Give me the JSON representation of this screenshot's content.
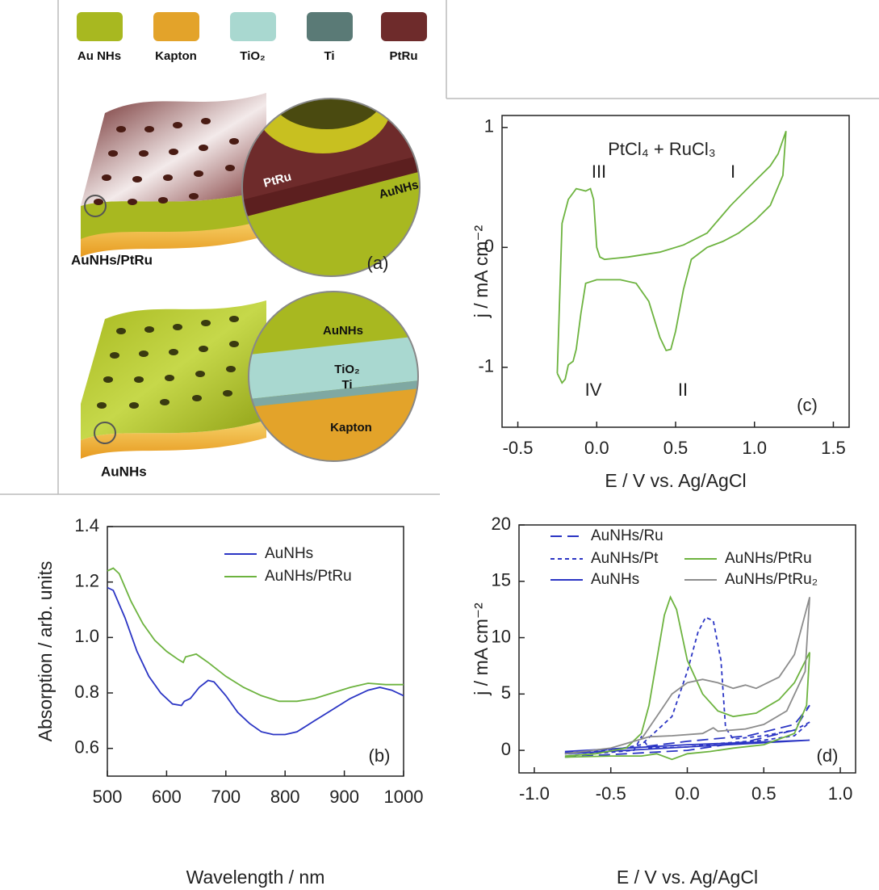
{
  "schematic": {
    "legend": [
      "Au NHs",
      "Kapton",
      "TiO₂",
      "Ti",
      "PtRu"
    ],
    "top": {
      "inset_labels": [
        "PtRu",
        "AuNHs"
      ],
      "caption": "AuNHs/PtRu",
      "panel_label": "(a)"
    },
    "bottom": {
      "inset_labels": [
        "AuNHs",
        "TiO₂",
        "Ti",
        "Kapton"
      ],
      "caption": "AuNHs"
    }
  },
  "chart_data": [
    {
      "type": "line",
      "panel_label": "(c)",
      "x_label": "E  / V vs. Ag/AgCl",
      "y_label": "j / mA cm⁻²",
      "xlim": [
        -0.6,
        1.6
      ],
      "ylim": [
        -1.5,
        1.1
      ],
      "xticks": [
        -0.5,
        {
          "value": 0,
          "label": "0.0"
        },
        0.5,
        {
          "value": 1,
          "label": "1.0"
        },
        1.5
      ],
      "yticks": [
        -1,
        0,
        1
      ],
      "annotations": [
        "PtCl₄ + RuCl₃",
        "III",
        "I",
        "IV",
        "II"
      ],
      "series": [
        {
          "color": "#6db33f",
          "dash": "solid",
          "x": [
            -0.25,
            -0.22,
            -0.18,
            -0.13,
            -0.1,
            -0.07,
            -0.04,
            -0.02,
            0.0,
            0.02,
            0.05,
            0.2,
            0.4,
            0.55,
            0.7,
            0.85,
            1.0,
            1.1,
            1.15,
            1.2,
            1.18,
            1.1,
            1.0,
            0.9,
            0.8,
            0.7,
            0.6,
            0.55,
            0.5,
            0.47,
            0.44,
            0.4,
            0.33,
            0.25,
            0.15,
            0.0,
            -0.07,
            -0.1,
            -0.13,
            -0.15,
            -0.18,
            -0.2,
            -0.22,
            -0.25
          ],
          "values": [
            -1.05,
            0.2,
            0.4,
            0.49,
            0.48,
            0.47,
            0.49,
            0.4,
            0.0,
            -0.08,
            -0.1,
            -0.08,
            -0.04,
            0.02,
            0.12,
            0.35,
            0.55,
            0.68,
            0.78,
            0.97,
            0.6,
            0.35,
            0.22,
            0.12,
            0.05,
            0.0,
            -0.1,
            -0.35,
            -0.7,
            -0.85,
            -0.86,
            -0.75,
            -0.45,
            -0.3,
            -0.27,
            -0.27,
            -0.3,
            -0.55,
            -0.85,
            -0.95,
            -0.98,
            -1.1,
            -1.13,
            -1.05
          ]
        }
      ]
    },
    {
      "type": "line",
      "panel_label": "(b)",
      "x_label": "Wavelength / nm",
      "y_label": "Absorption / arb. units",
      "xlim": [
        500,
        1000
      ],
      "ylim": [
        0.5,
        1.4
      ],
      "xticks": [
        500,
        600,
        700,
        800,
        900,
        1000
      ],
      "yticks": [
        0.6,
        0.8,
        {
          "value": 1,
          "label": "1.0"
        },
        1.2,
        1.4
      ],
      "legend": "upper right",
      "series": [
        {
          "name": "AuNHs",
          "color": "#2b35c4",
          "dash": "solid",
          "x": [
            500,
            510,
            530,
            550,
            570,
            590,
            610,
            625,
            630,
            640,
            655,
            670,
            680,
            700,
            720,
            740,
            760,
            780,
            800,
            820,
            850,
            880,
            910,
            940,
            960,
            980,
            1000
          ],
          "values": [
            1.18,
            1.17,
            1.07,
            0.95,
            0.86,
            0.8,
            0.76,
            0.755,
            0.77,
            0.78,
            0.82,
            0.845,
            0.84,
            0.79,
            0.73,
            0.69,
            0.66,
            0.65,
            0.65,
            0.66,
            0.7,
            0.74,
            0.78,
            0.81,
            0.82,
            0.81,
            0.79
          ]
        },
        {
          "name": "AuNHs/PtRu",
          "color": "#6db33f",
          "dash": "solid",
          "x": [
            500,
            510,
            520,
            540,
            560,
            580,
            600,
            620,
            628,
            632,
            650,
            670,
            700,
            730,
            760,
            790,
            820,
            850,
            880,
            910,
            940,
            970,
            1000
          ],
          "values": [
            1.24,
            1.25,
            1.23,
            1.13,
            1.05,
            0.99,
            0.95,
            0.92,
            0.91,
            0.93,
            0.94,
            0.91,
            0.86,
            0.82,
            0.79,
            0.77,
            0.77,
            0.78,
            0.8,
            0.82,
            0.835,
            0.83,
            0.83
          ]
        }
      ]
    },
    {
      "type": "line",
      "panel_label": "(d)",
      "x_label": "E / V vs. Ag/AgCl",
      "y_label": "j / mA cm⁻²",
      "xlim": [
        -1.1,
        1.1
      ],
      "ylim": [
        -2,
        20
      ],
      "xticks": [
        {
          "value": -1,
          "label": "-1.0"
        },
        -0.5,
        {
          "value": 0,
          "label": "0.0"
        },
        0.5,
        {
          "value": 1,
          "label": "1.0"
        }
      ],
      "yticks": [
        0,
        5,
        10,
        15,
        20
      ],
      "legend": "upper left",
      "series": [
        {
          "name": "AuNHs/Ru",
          "color": "#2b35c4",
          "dash": "long",
          "x": [
            -0.8,
            -0.4,
            0,
            0.4,
            0.7,
            0.8,
            0.7,
            0.4,
            0,
            -0.3,
            -0.8
          ],
          "values": [
            -0.6,
            -0.3,
            0,
            0.8,
            1.8,
            4,
            2.3,
            1.3,
            0.8,
            0.3,
            -0.2
          ]
        },
        {
          "name": "AuNHs/Pt",
          "color": "#2b35c4",
          "dash": "short",
          "x": [
            -0.8,
            -0.5,
            -0.3,
            -0.1,
            0.0,
            0.07,
            0.12,
            0.17,
            0.22,
            0.25,
            0.3,
            0.5,
            0.7,
            0.8,
            0.7,
            0.5,
            0.2,
            0.0,
            -0.25,
            -0.3,
            -0.35,
            -0.8
          ],
          "values": [
            -0.3,
            0,
            0.5,
            3,
            7,
            10.5,
            11.8,
            11.5,
            8,
            2,
            1.0,
            1.3,
            1.8,
            2.5,
            1.3,
            0.9,
            0.6,
            0.3,
            0.2,
            1.2,
            0,
            -0.5
          ]
        },
        {
          "name": "AuNHs",
          "color": "#2b35c4",
          "dash": "solid",
          "x": [
            -0.8,
            -0.4,
            0,
            0.4,
            0.8,
            0.4,
            0,
            -0.4,
            -0.8
          ],
          "values": [
            -0.3,
            0,
            0.3,
            0.6,
            0.9,
            0.7,
            0.5,
            0.2,
            -0.1
          ]
        },
        {
          "name": "AuNHs/PtRu",
          "color": "#6db33f",
          "dash": "solid",
          "x": [
            -0.8,
            -0.6,
            -0.4,
            -0.3,
            -0.25,
            -0.2,
            -0.15,
            -0.11,
            -0.07,
            0.0,
            0.1,
            0.2,
            0.3,
            0.45,
            0.6,
            0.7,
            0.8,
            0.78,
            0.7,
            0.5,
            0.3,
            0.15,
            0.0,
            -0.1,
            -0.2,
            -0.3,
            -0.5,
            -0.8
          ],
          "values": [
            -0.5,
            -0.3,
            0.2,
            1.5,
            4,
            8,
            12,
            13.6,
            12.5,
            8,
            5,
            3.5,
            3.0,
            3.3,
            4.5,
            6,
            8.7,
            4,
            1.5,
            0.5,
            0.2,
            -0.1,
            -0.3,
            -0.8,
            -0.3,
            -0.5,
            -0.5,
            -0.6
          ]
        },
        {
          "name": "AuNHs/PtRu₂",
          "color": "#8c8c8c",
          "dash": "solid",
          "x": [
            -0.8,
            -0.5,
            -0.3,
            -0.2,
            -0.1,
            0.0,
            0.1,
            0.2,
            0.3,
            0.38,
            0.45,
            0.6,
            0.7,
            0.8,
            0.77,
            0.65,
            0.5,
            0.38,
            0.2,
            0.17,
            0.1,
            -0.1,
            -0.25,
            -0.3,
            -0.5,
            -0.8
          ],
          "values": [
            -0.3,
            0.2,
            1.0,
            3,
            5,
            6,
            6.3,
            6.0,
            5.5,
            5.8,
            5.5,
            6.5,
            8.5,
            13.6,
            7,
            3.5,
            2.3,
            1.9,
            1.7,
            2.0,
            1.5,
            1.3,
            1.2,
            1.0,
            0.2,
            -0.3
          ]
        }
      ]
    }
  ]
}
